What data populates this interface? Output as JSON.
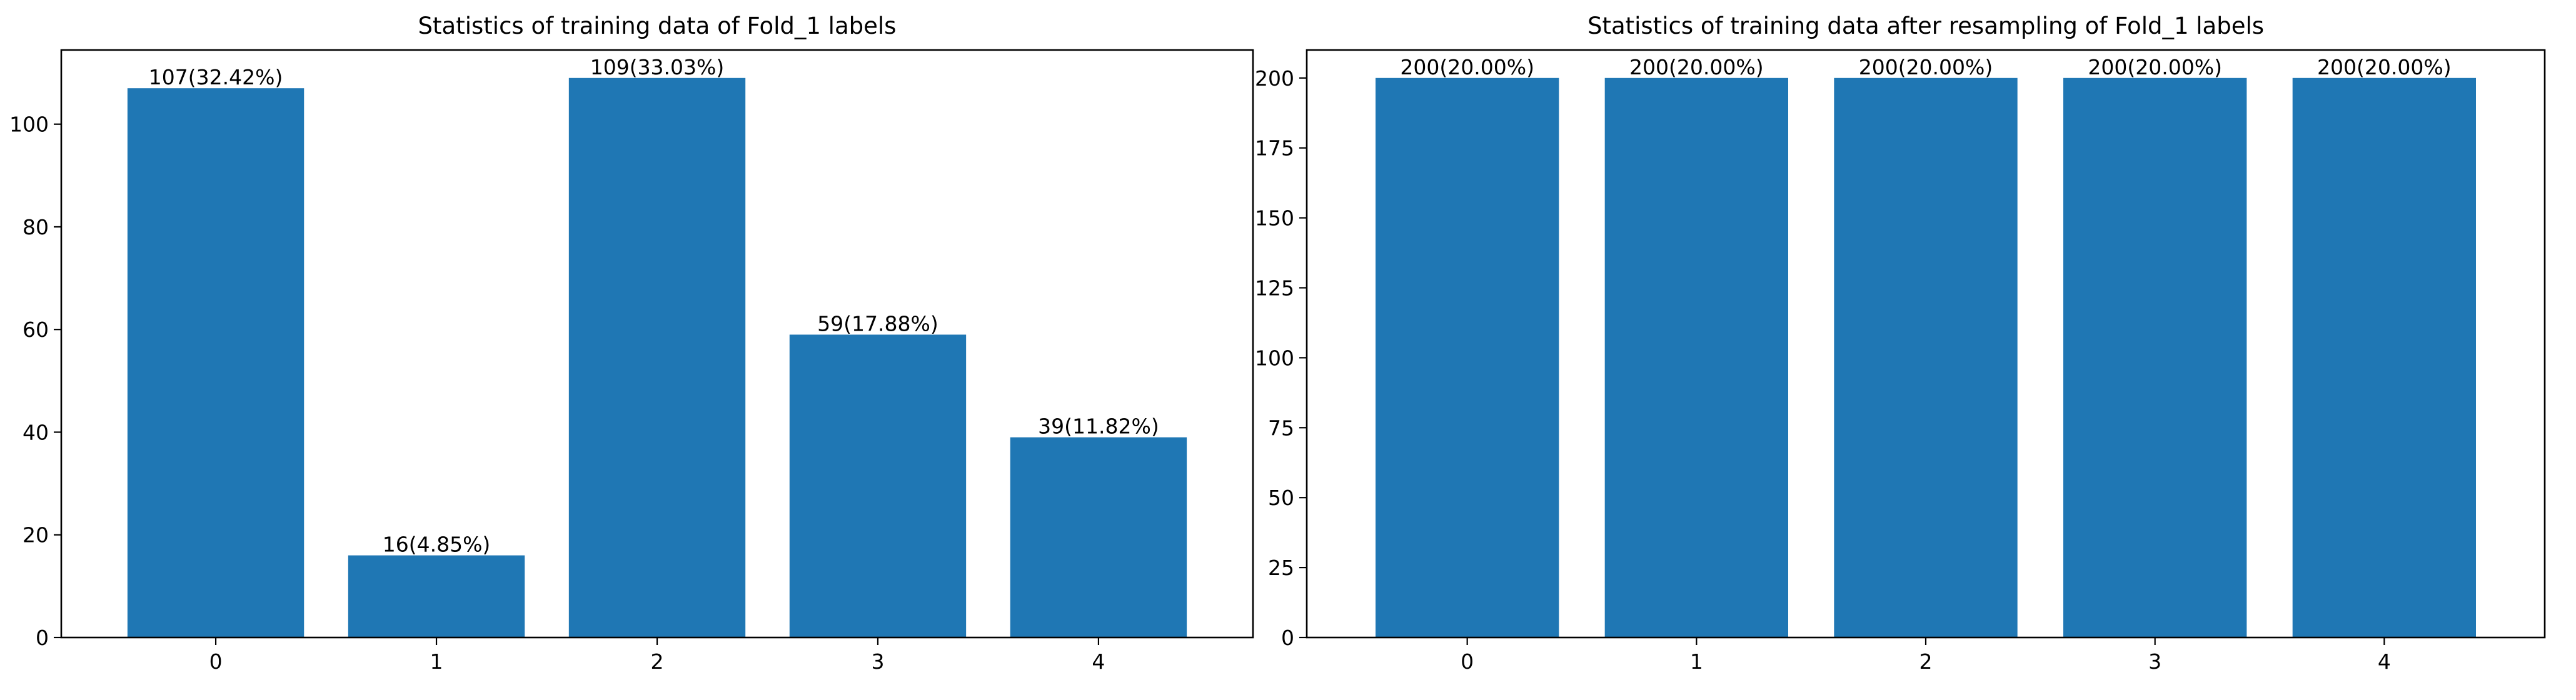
{
  "chart_data": [
    {
      "type": "bar",
      "title": "Statistics of training data of Fold_1 labels",
      "xlabel": "",
      "ylabel": "",
      "categories": [
        "0",
        "1",
        "2",
        "3",
        "4"
      ],
      "values": [
        107,
        16,
        109,
        59,
        39
      ],
      "data_labels": [
        "107(32.42%)",
        "16(4.85%)",
        "109(33.03%)",
        "59(17.88%)",
        "39(11.82%)"
      ],
      "ylim": [
        0,
        114.45
      ],
      "yticks": [
        0,
        20,
        40,
        60,
        80,
        100
      ],
      "grid": false,
      "bar_color": "#1f77b4"
    },
    {
      "type": "bar",
      "title": "Statistics of training data after resampling of Fold_1 labels",
      "xlabel": "",
      "ylabel": "",
      "categories": [
        "0",
        "1",
        "2",
        "3",
        "4"
      ],
      "values": [
        200,
        200,
        200,
        200,
        200
      ],
      "data_labels": [
        "200(20.00%)",
        "200(20.00%)",
        "200(20.00%)",
        "200(20.00%)",
        "200(20.00%)"
      ],
      "ylim": [
        0,
        210
      ],
      "yticks": [
        0,
        25,
        50,
        75,
        100,
        125,
        150,
        175,
        200
      ],
      "grid": false,
      "bar_color": "#1f77b4"
    }
  ]
}
